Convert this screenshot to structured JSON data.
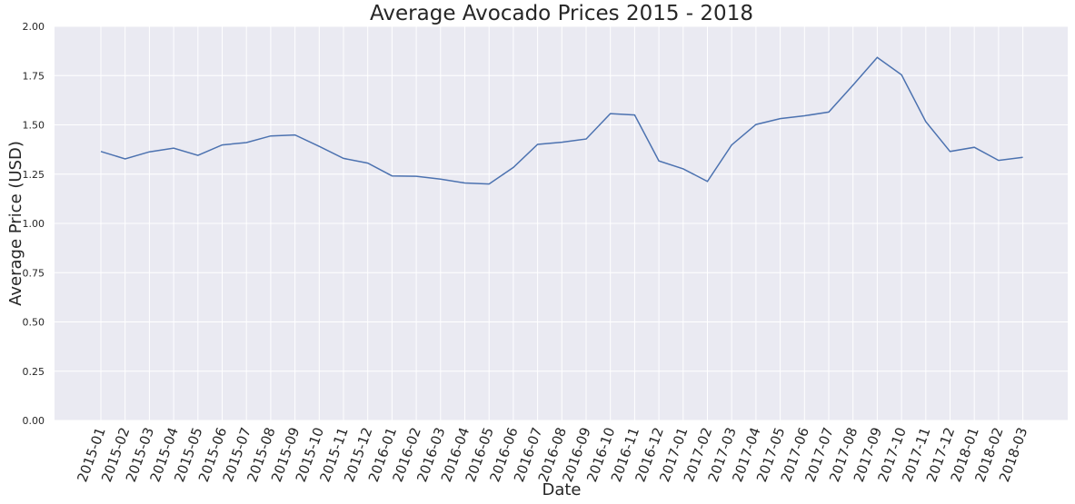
{
  "chart_data": {
    "type": "line",
    "title": "Average Avocado Prices 2015 - 2018",
    "xlabel": "Date",
    "ylabel": "Average Price (USD)",
    "ylim": [
      0,
      2.0
    ],
    "yticks": [
      "0.00",
      "0.25",
      "0.50",
      "0.75",
      "1.00",
      "1.25",
      "1.50",
      "1.75",
      "2.00"
    ],
    "grid": true,
    "colors": {
      "background": "#eaeaf2",
      "grid": "#ffffff",
      "line": "#4c72b0"
    },
    "categories": [
      "2015-01",
      "2015-02",
      "2015-03",
      "2015-04",
      "2015-05",
      "2015-06",
      "2015-07",
      "2015-08",
      "2015-09",
      "2015-10",
      "2015-11",
      "2015-12",
      "2016-01",
      "2016-02",
      "2016-03",
      "2016-04",
      "2016-05",
      "2016-06",
      "2016-07",
      "2016-08",
      "2016-09",
      "2016-10",
      "2016-11",
      "2016-12",
      "2017-01",
      "2017-02",
      "2017-03",
      "2017-04",
      "2017-05",
      "2017-06",
      "2017-07",
      "2017-08",
      "2017-09",
      "2017-10",
      "2017-11",
      "2017-12",
      "2018-01",
      "2018-02",
      "2018-03"
    ],
    "values": [
      1.365,
      1.327,
      1.363,
      1.382,
      1.345,
      1.398,
      1.41,
      1.444,
      1.449,
      1.391,
      1.33,
      1.306,
      1.241,
      1.239,
      1.225,
      1.205,
      1.2,
      1.284,
      1.401,
      1.412,
      1.428,
      1.557,
      1.55,
      1.317,
      1.277,
      1.213,
      1.398,
      1.502,
      1.532,
      1.546,
      1.565,
      1.702,
      1.842,
      1.754,
      1.516,
      1.365,
      1.386,
      1.32,
      1.335
    ]
  }
}
